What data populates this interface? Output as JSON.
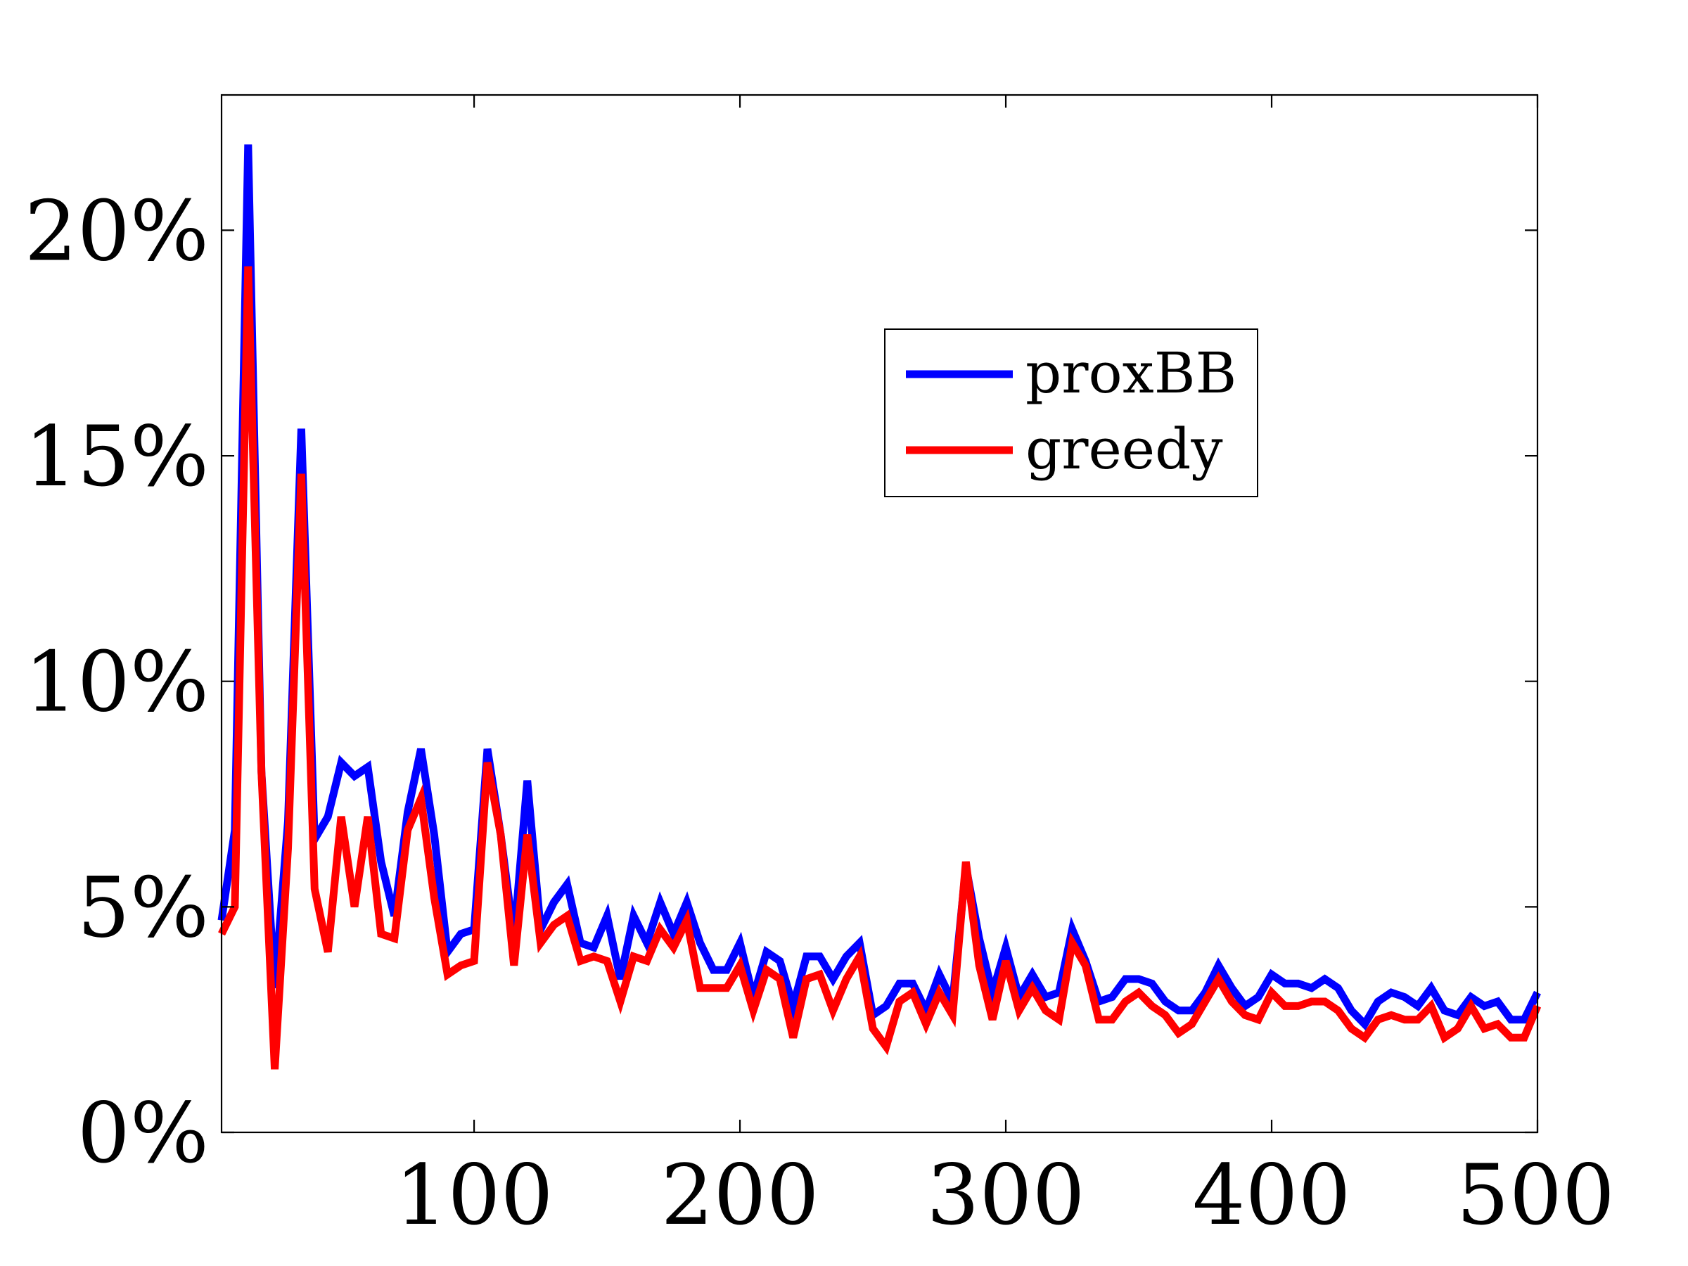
{
  "chart_data": {
    "type": "line",
    "title": "",
    "xlabel": "",
    "ylabel": "",
    "xlim": [
      5,
      500
    ],
    "ylim": [
      0,
      23
    ],
    "x_ticks": [
      100,
      200,
      300,
      400,
      500
    ],
    "x_tick_labels": [
      "100",
      "200",
      "300",
      "400",
      "500"
    ],
    "y_ticks": [
      0,
      5,
      10,
      15,
      20
    ],
    "y_tick_labels": [
      "0%",
      "5%",
      "10%",
      "15%",
      "20%"
    ],
    "grid": false,
    "legend_position": "upper-right",
    "x": [
      5,
      10,
      15,
      20,
      25,
      30,
      35,
      40,
      45,
      50,
      55,
      60,
      65,
      70,
      75,
      80,
      85,
      90,
      95,
      100,
      105,
      110,
      115,
      120,
      125,
      130,
      135,
      140,
      145,
      150,
      155,
      160,
      165,
      170,
      175,
      180,
      185,
      190,
      195,
      200,
      205,
      210,
      215,
      220,
      225,
      230,
      235,
      240,
      245,
      250,
      255,
      260,
      265,
      270,
      275,
      280,
      285,
      290,
      295,
      300,
      305,
      310,
      315,
      320,
      325,
      330,
      335,
      340,
      345,
      350,
      355,
      360,
      365,
      370,
      375,
      380,
      385,
      390,
      395,
      400,
      405,
      410,
      415,
      420,
      425,
      430,
      435,
      440,
      445,
      450,
      455,
      460,
      465,
      470,
      475,
      480,
      485,
      490,
      495,
      500
    ],
    "series": [
      {
        "name": "proxBB",
        "color": "#0000ff",
        "values": [
          4.7,
          6.7,
          21.9,
          8.0,
          3.2,
          6.9,
          15.6,
          6.5,
          7.0,
          8.2,
          7.9,
          8.1,
          6.0,
          4.8,
          7.1,
          8.5,
          6.6,
          4.0,
          4.4,
          4.5,
          8.5,
          6.6,
          4.3,
          7.8,
          4.5,
          5.1,
          5.5,
          4.2,
          4.1,
          4.8,
          3.4,
          4.8,
          4.2,
          5.1,
          4.4,
          5.1,
          4.2,
          3.6,
          3.6,
          4.2,
          3.0,
          4.0,
          3.8,
          2.8,
          3.9,
          3.9,
          3.4,
          3.9,
          4.2,
          2.6,
          2.8,
          3.3,
          3.3,
          2.7,
          3.5,
          2.9,
          5.9,
          4.3,
          3.1,
          4.1,
          3.0,
          3.5,
          3.0,
          3.1,
          4.5,
          3.8,
          2.9,
          3.0,
          3.4,
          3.4,
          3.3,
          2.9,
          2.7,
          2.7,
          3.1,
          3.7,
          3.2,
          2.8,
          3.0,
          3.5,
          3.3,
          3.3,
          3.2,
          3.4,
          3.2,
          2.7,
          2.4,
          2.9,
          3.1,
          3.0,
          2.8,
          3.2,
          2.7,
          2.6,
          3.0,
          2.8,
          2.9,
          2.5,
          2.5,
          3.1
        ]
      },
      {
        "name": "greedy",
        "color": "#ff0000",
        "values": [
          4.4,
          5.0,
          19.2,
          8.0,
          1.4,
          6.3,
          14.6,
          5.4,
          4.0,
          7.0,
          5.0,
          7.0,
          4.4,
          4.3,
          6.7,
          7.4,
          5.2,
          3.5,
          3.7,
          3.8,
          8.2,
          6.6,
          3.7,
          6.6,
          4.2,
          4.6,
          4.8,
          3.8,
          3.9,
          3.8,
          2.9,
          3.9,
          3.8,
          4.5,
          4.1,
          4.7,
          3.2,
          3.2,
          3.2,
          3.7,
          2.7,
          3.6,
          3.4,
          2.1,
          3.4,
          3.5,
          2.7,
          3.4,
          3.9,
          2.3,
          1.9,
          2.9,
          3.1,
          2.4,
          3.1,
          2.6,
          6.0,
          3.7,
          2.5,
          3.8,
          2.7,
          3.2,
          2.7,
          2.5,
          4.2,
          3.7,
          2.5,
          2.5,
          2.9,
          3.1,
          2.8,
          2.6,
          2.2,
          2.4,
          2.9,
          3.4,
          2.9,
          2.6,
          2.5,
          3.1,
          2.8,
          2.8,
          2.9,
          2.9,
          2.7,
          2.3,
          2.1,
          2.5,
          2.6,
          2.5,
          2.5,
          2.8,
          2.1,
          2.3,
          2.8,
          2.3,
          2.4,
          2.1,
          2.1,
          2.8
        ]
      }
    ]
  }
}
